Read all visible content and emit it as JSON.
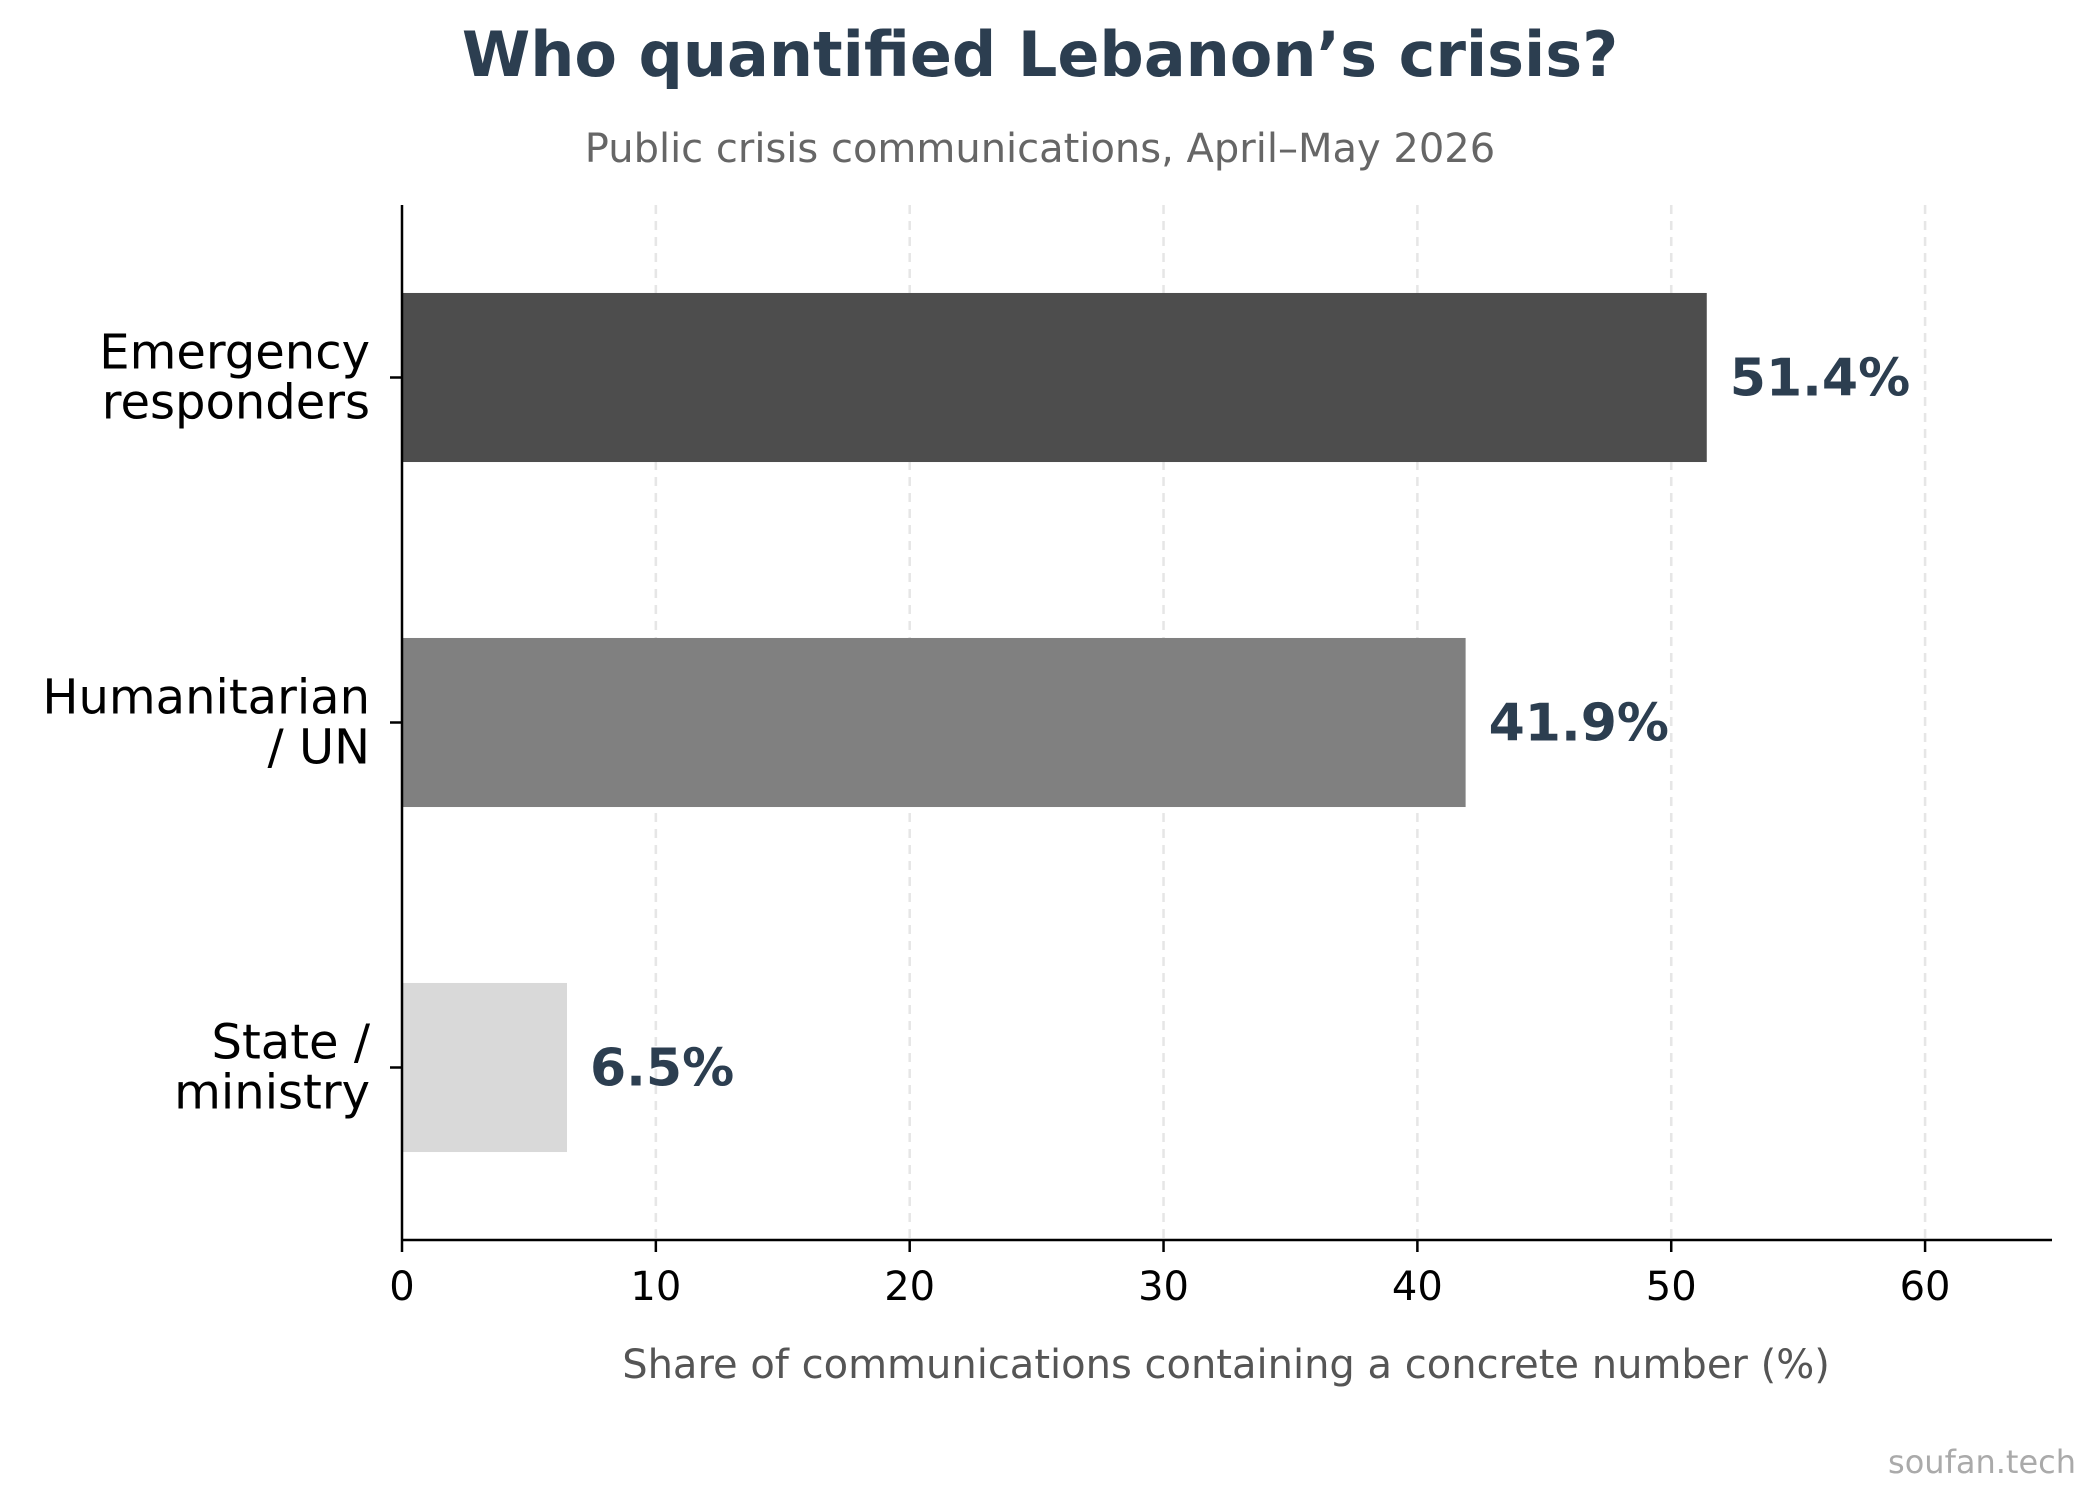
{
  "chart_data": {
    "type": "bar",
    "orientation": "horizontal",
    "title": "Who quantified Lebanon’s crisis?",
    "subtitle": "Public crisis communications, April–May 2026",
    "xlabel": "Share of communications containing a concrete number (%)",
    "ylabel": "",
    "xlim": [
      0,
      65
    ],
    "xticks": [
      0,
      10,
      20,
      30,
      40,
      50,
      60
    ],
    "tick_labels": [
      "0",
      "10",
      "20",
      "30",
      "40",
      "50",
      "60"
    ],
    "grid": "vertical dashed",
    "categories": [
      {
        "lines": [
          "Emergency",
          "responders"
        ],
        "value": 51.4,
        "label": "51.4%",
        "color": "#4d4d4d"
      },
      {
        "lines": [
          "Humanitarian",
          "/ UN"
        ],
        "value": 41.9,
        "label": "41.9%",
        "color": "#808080"
      },
      {
        "lines": [
          "State /",
          "ministry"
        ],
        "value": 6.5,
        "label": "6.5%",
        "color": "#d9d9d9"
      }
    ]
  },
  "colors": {
    "title": "#2c3e50",
    "subtitle": "#666666",
    "value_label": "#2c3e50",
    "axis_label": "#555555",
    "grid": "#e6e6e6",
    "watermark": "#aaaaaa"
  },
  "watermark": "soufan.tech"
}
